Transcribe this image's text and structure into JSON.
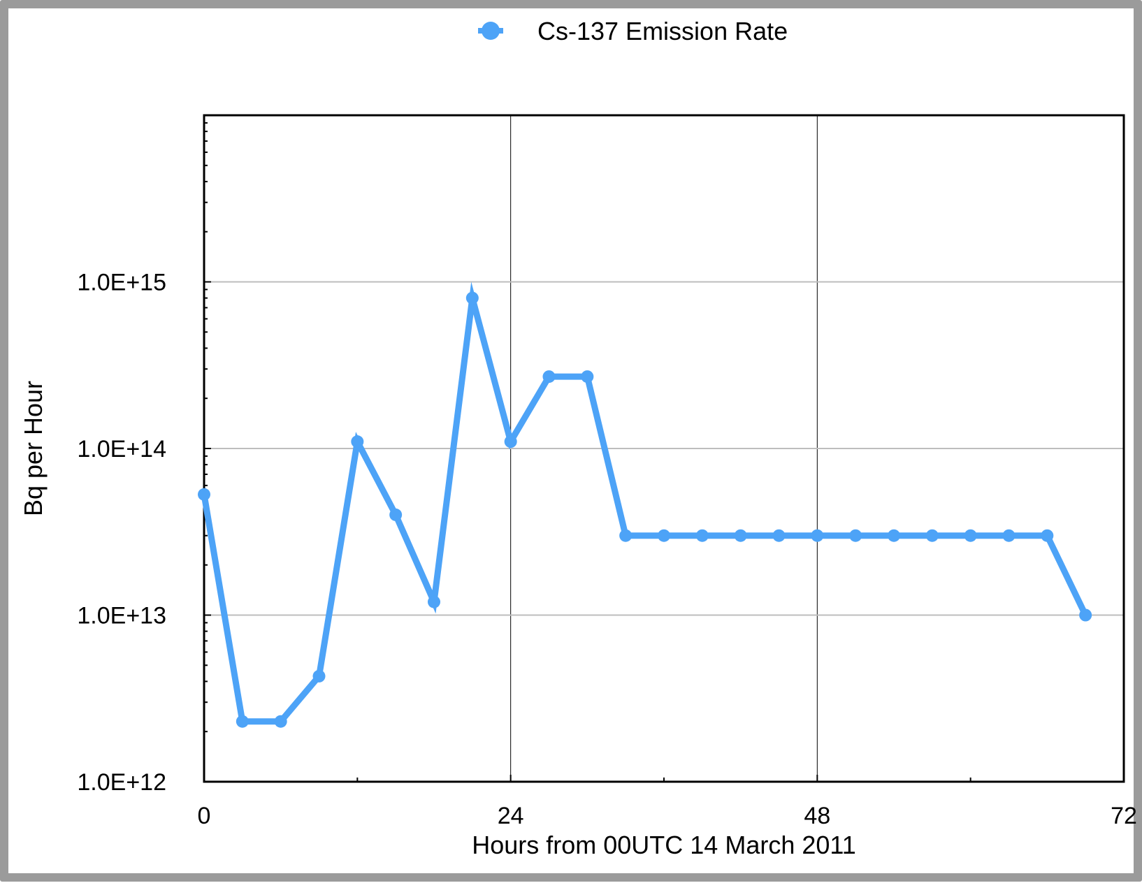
{
  "chart_data": {
    "type": "line",
    "title": "",
    "xlabel": "Hours from 00UTC 14 March 2011",
    "ylabel": "Bq per Hour",
    "xlim": [
      0,
      72
    ],
    "ylim": [
      1000000000000.0,
      1e+16
    ],
    "y_scale": "log",
    "x_ticks": [
      0,
      24,
      48,
      72
    ],
    "x_tick_labels": [
      "0",
      "24",
      "48",
      "72"
    ],
    "y_ticks": [
      1000000000000.0,
      10000000000000.0,
      100000000000000.0,
      1000000000000000.0
    ],
    "y_tick_labels": [
      "1.0E+12",
      "1.0E+13",
      "1.0E+14",
      "1.0E+15"
    ],
    "grid": true,
    "legend_position": "top-center",
    "series": [
      {
        "name": "Cs-137 Emission Rate",
        "color": "#4da3f7",
        "x": [
          0,
          3,
          6,
          9,
          12,
          15,
          18,
          21,
          24,
          27,
          30,
          33,
          36,
          39,
          42,
          45,
          48,
          51,
          54,
          57,
          60,
          63,
          66,
          69
        ],
        "y": [
          53000000000000.0,
          2300000000000.0,
          2300000000000.0,
          4300000000000.0,
          110000000000000.0,
          40000000000000.0,
          12000000000000.0,
          800000000000000.0,
          110000000000000.0,
          270000000000000.0,
          270000000000000.0,
          30000000000000.0,
          30000000000000.0,
          30000000000000.0,
          30000000000000.0,
          30000000000000.0,
          30000000000000.0,
          30000000000000.0,
          30000000000000.0,
          30000000000000.0,
          30000000000000.0,
          30000000000000.0,
          30000000000000.0,
          10000000000000.0
        ]
      }
    ]
  }
}
